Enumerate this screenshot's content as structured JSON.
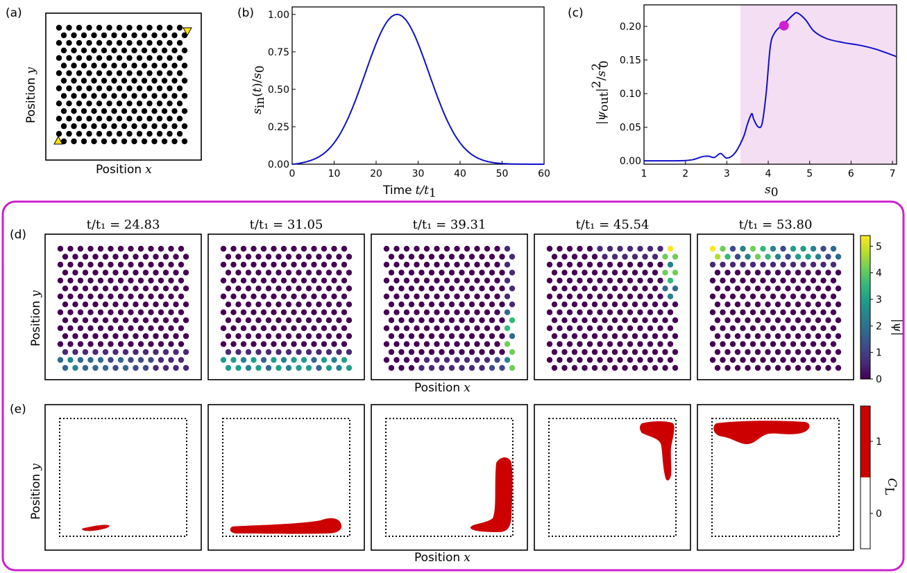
{
  "panel_labels": {
    "a": "(a)",
    "b": "(b)",
    "c": "(c)",
    "d": "(d)",
    "e": "(e)"
  },
  "axis_text": {
    "position_x": "Position",
    "position_y": "Position",
    "x_symbol": "x",
    "y_symbol": "y",
    "time": "Time",
    "time_symbol": "t/t",
    "s0_symbol": "s",
    "sin_over_s0": "s",
    "psi_out_label": "|ψ",
    "colorbar_psi": "|ψ|",
    "colorbar_cl": "C"
  },
  "snapshot_times": [
    "t/t₁ = 24.83",
    "t/t₁ = 31.05",
    "t/t₁ = 39.31",
    "t/t₁ = 45.54",
    "t/t₁ = 53.80"
  ],
  "colors": {
    "curve": "#1010c8",
    "highlight_band": "#f4def4",
    "marker": "#d21ed2",
    "frame": "#cc22cc",
    "defect": "#cc0000",
    "triangle": "#ffe600",
    "viridis": [
      "#440154",
      "#482878",
      "#3e4989",
      "#31688e",
      "#26828e",
      "#1f9e89",
      "#35b779",
      "#6ece58",
      "#b5de2b",
      "#fde725"
    ]
  },
  "chart_data": [
    {
      "panel": "(a)",
      "type": "scatter",
      "description_free": true,
      "lattice": {
        "rows": 16,
        "sites_per_row": [
          12,
          12
        ]
      },
      "markers": [
        {
          "shape": "triangle-up",
          "corner": "bottom-left"
        },
        {
          "shape": "triangle-down",
          "corner": "top-right"
        }
      ],
      "xlabel": "Position x",
      "ylabel": "Position y"
    },
    {
      "panel": "(b)",
      "type": "line",
      "xlabel": "Time t/t1",
      "ylabel": "s_in(t)/s_0",
      "xlim": [
        0,
        60
      ],
      "ylim": [
        0,
        1.05
      ],
      "xticks": [
        "0",
        "10",
        "20",
        "30",
        "40",
        "50",
        "60"
      ],
      "yticks": [
        "0.00",
        "0.25",
        "0.50",
        "0.75",
        "1.00"
      ],
      "x": [
        0,
        2.5,
        5,
        7.5,
        10,
        12.5,
        15,
        17.5,
        20,
        22.5,
        25,
        27.5,
        30,
        32.5,
        35,
        37.5,
        40,
        42.5,
        45,
        47.5,
        50,
        52.5,
        55,
        57.5,
        60
      ],
      "y": [
        0.004,
        0.013,
        0.039,
        0.099,
        0.206,
        0.368,
        0.57,
        0.771,
        0.923,
        0.991,
        1.0,
        0.991,
        0.923,
        0.771,
        0.57,
        0.368,
        0.206,
        0.099,
        0.039,
        0.013,
        0.004,
        0.001,
        0.0002,
        0.0,
        0.0
      ]
    },
    {
      "panel": "(c)",
      "type": "line",
      "xlabel": "s_0",
      "ylabel": "|ψ_out|^2/s_0^2",
      "xlim": [
        1,
        7.1
      ],
      "ylim": [
        -0.005,
        0.232
      ],
      "xticks": [
        "1",
        "2",
        "3",
        "4",
        "5",
        "6",
        "7"
      ],
      "yticks": [
        "0.00",
        "0.05",
        "0.10",
        "0.15",
        "0.20"
      ],
      "shaded_from": 3.33,
      "highlight_point": [
        4.38,
        0.201
      ],
      "x": [
        1.0,
        1.5,
        2.0,
        2.2,
        2.4,
        2.55,
        2.7,
        2.85,
        3.0,
        3.2,
        3.4,
        3.5,
        3.6,
        3.65,
        3.75,
        3.85,
        3.95,
        4.05,
        4.15,
        4.3,
        4.45,
        4.6,
        4.7,
        4.9,
        5.1,
        5.4,
        5.8,
        6.2,
        6.6,
        7.1
      ],
      "y": [
        0.0,
        0.0,
        0.0005,
        0.002,
        0.006,
        0.007,
        0.005,
        0.011,
        0.004,
        0.012,
        0.035,
        0.055,
        0.07,
        0.062,
        0.051,
        0.055,
        0.1,
        0.17,
        0.19,
        0.2,
        0.208,
        0.217,
        0.22,
        0.21,
        0.193,
        0.182,
        0.176,
        0.172,
        0.166,
        0.155
      ]
    },
    {
      "panel": "(d)",
      "type": "heatmap",
      "colorbar_label": "|ψ|",
      "colorbar_ticks": [
        "0",
        "1",
        "2",
        "3",
        "4",
        "5"
      ],
      "color_range": [
        0,
        5.4
      ],
      "snapshots": [
        {
          "time": 24.83,
          "localized_edge": "bottom",
          "peak": 2.9
        },
        {
          "time": 31.05,
          "localized_edge": "bottom",
          "peak": 3.2
        },
        {
          "time": 39.31,
          "localized_edge": "right",
          "peak": 5.0
        },
        {
          "time": 45.54,
          "localized_edge": "right-top",
          "peak": 5.3
        },
        {
          "time": 53.8,
          "localized_edge": "top",
          "peak": 4.6
        }
      ]
    },
    {
      "panel": "(e)",
      "type": "heatmap",
      "colorbar_label": "C_L",
      "colorbar_ticks": [
        "0",
        "1"
      ],
      "levels": [
        0,
        1
      ]
    }
  ]
}
